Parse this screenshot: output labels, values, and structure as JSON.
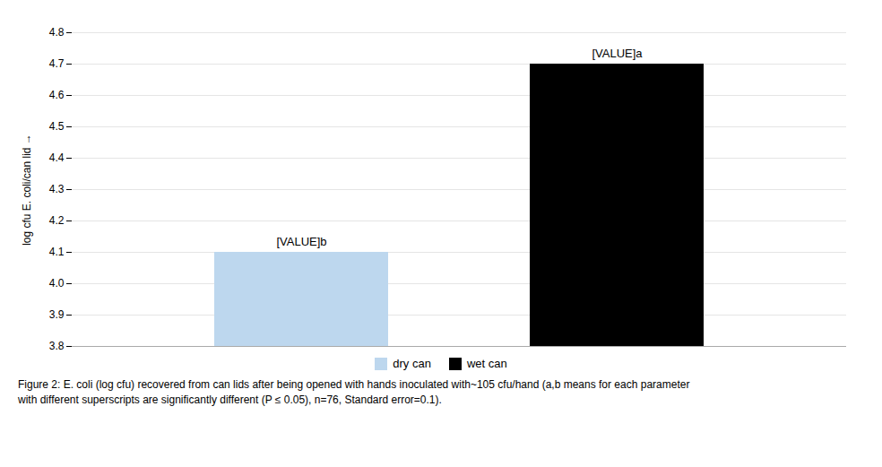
{
  "chart_data": {
    "type": "bar",
    "categories": [
      "dry can",
      "wet can"
    ],
    "values": [
      4.1,
      4.7
    ],
    "value_labels": [
      "[VALUE]b",
      "[VALUE]a"
    ],
    "data_labels": true,
    "colors": [
      "#bdd7ee",
      "#000000"
    ],
    "ylabel": "log cfu E. coli/can lid",
    "ylim": [
      3.8,
      4.8
    ],
    "yticks": [
      3.8,
      3.9,
      {
        "value": 4.0,
        "label": "4.0"
      },
      4.1,
      4.2,
      4.3,
      4.4,
      4.5,
      4.6,
      4.7,
      4.8
    ],
    "grid": true,
    "legend": "bottom",
    "tick_labels": "y",
    "caption": [
      "Figure 2: E. coli (log cfu) recovered from can lids after being opened with hands inoculated with~105 cfu/hand (a,b means for each parameter",
      "with different superscripts are significantly different (P ≤ 0.05), n=76, Standard error=0.1)."
    ]
  }
}
